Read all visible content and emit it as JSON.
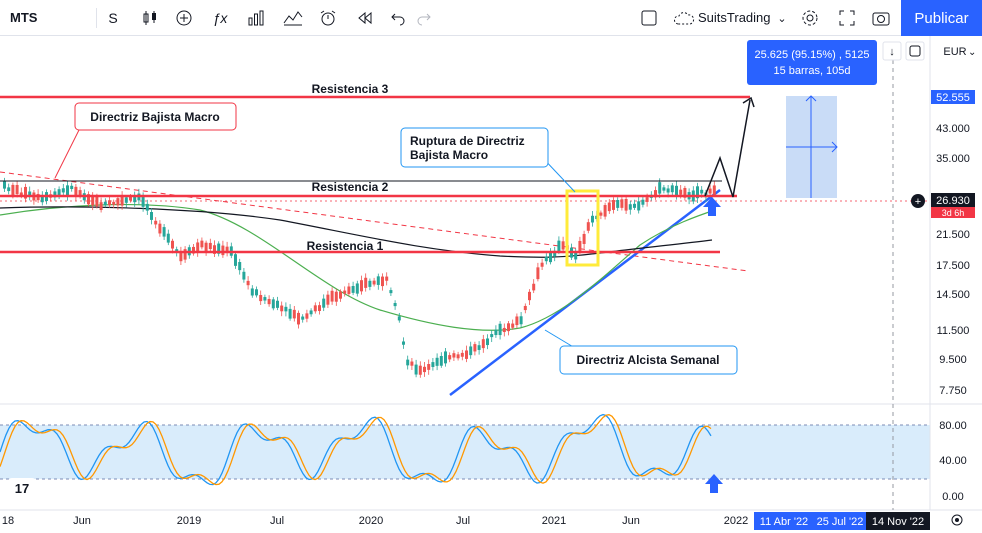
{
  "toolbar": {
    "symbol": "MTS",
    "interval": "S",
    "brand": "SuitsTrading",
    "publish_label": "Publicar",
    "currency": "EUR"
  },
  "chart_data": {
    "type": "candlestick",
    "price_axis": {
      "ticks": [
        "52.555",
        "43.000",
        "35.000",
        "26.930",
        "21.500",
        "17.500",
        "14.500",
        "11.500",
        "9.500",
        "7.750"
      ],
      "current_price": "26.930",
      "countdown": "3d 6h",
      "top_label": "52.555"
    },
    "stoch_axis": {
      "ticks": [
        "80.00",
        "40.00",
        "0.00"
      ]
    },
    "time_axis": {
      "ticks": [
        "18",
        "Jun",
        "2019",
        "Jul",
        "2020",
        "Jul",
        "2021",
        "Jun",
        "2022"
      ],
      "range_labels": [
        "11 Abr '22",
        "25 Jul '22",
        "14 Nov '22"
      ]
    },
    "measure": {
      "line1": "25.625 (95.15%) , 5125",
      "line2": "15 barras, 105d"
    },
    "annotations": {
      "resistencia3": "Resistencia 3",
      "resistencia2": "Resistencia 2",
      "resistencia1": "Resistencia 1",
      "directriz_bajista": "Directriz Bajista Macro",
      "ruptura_line1": "Ruptura de Directriz",
      "ruptura_line2": "Bajista Macro",
      "directriz_alcista": "Directriz Alcista Semanal"
    },
    "colors": {
      "up": "#26a69a",
      "down": "#ef5350",
      "resistance": "#f23645",
      "trendline": "#2962ff",
      "ma_fast": "#4caf50",
      "ma_slow": "#131722",
      "stoch_k": "#2196f3",
      "stoch_d": "#ff9800",
      "highlight": "#ffeb3b"
    }
  }
}
